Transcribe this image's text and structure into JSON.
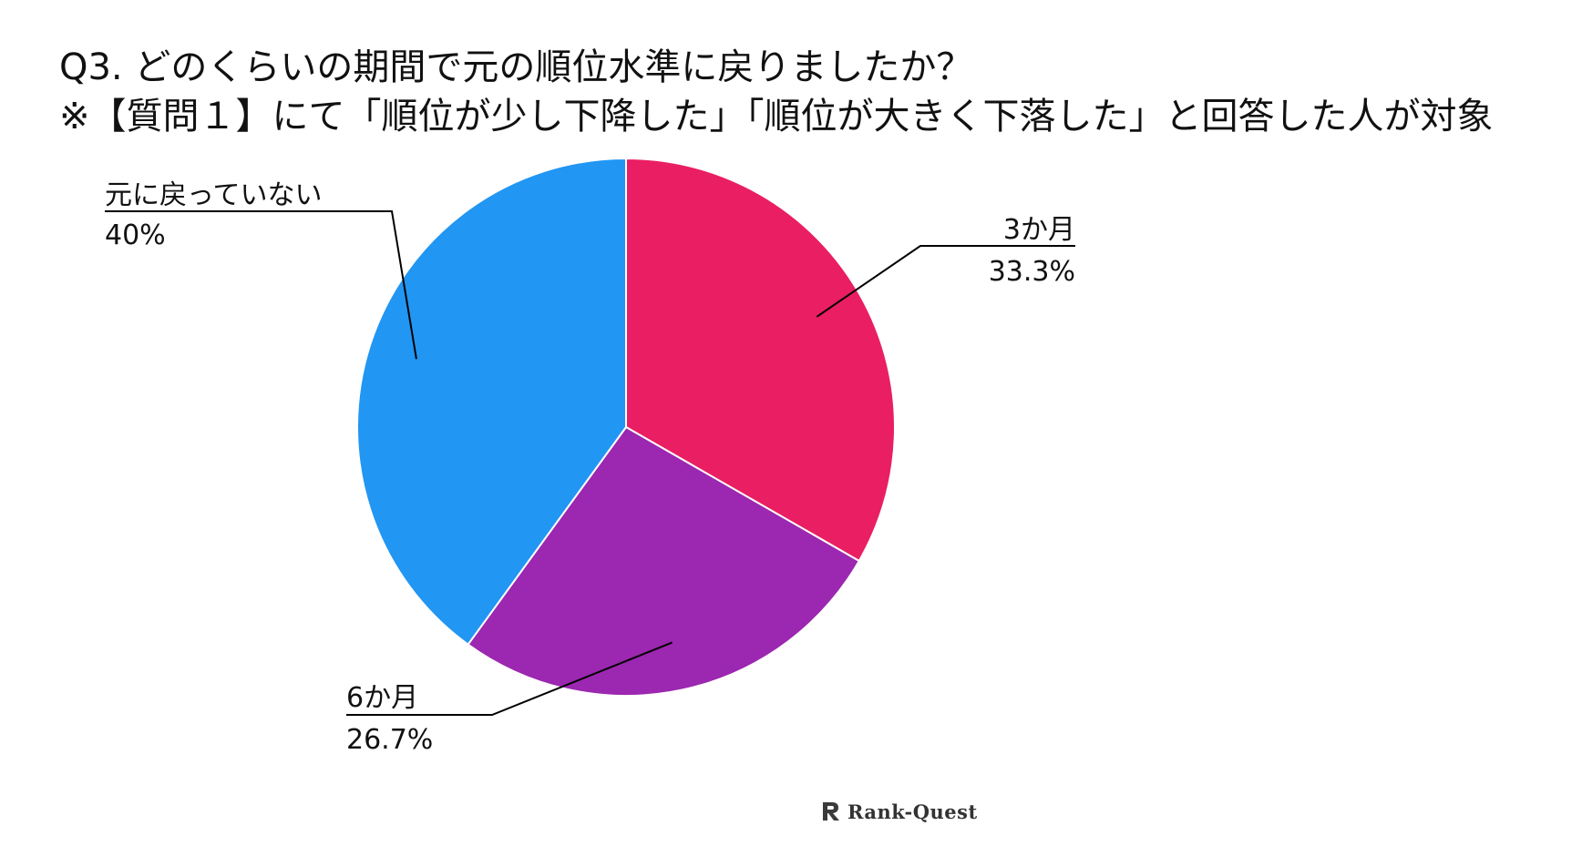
{
  "title": {
    "line1": "Q3. どのくらいの期間で元の順位水準に戻りましたか？",
    "line2": "※【質問１】にて「順位が少し下降した」「順位が大きく下落した」と回答した人が対象"
  },
  "chart_data": {
    "type": "pie",
    "title": "Q3. どのくらいの期間で元の順位水準に戻りましたか？",
    "slices": [
      {
        "label": "3か月",
        "percent_label": "33.3%",
        "value": 33.3,
        "color": "#E91E63"
      },
      {
        "label": "6か月",
        "percent_label": "26.7%",
        "value": 26.7,
        "color": "#9C27B0"
      },
      {
        "label": "元に戻っていない",
        "percent_label": "40%",
        "value": 40,
        "color": "#2196F3"
      }
    ],
    "start_angle": "12 o'clock",
    "direction": "clockwise",
    "slice_border_color": "#ffffff",
    "legend": "none",
    "labels": "outside with leader lines"
  },
  "watermark": {
    "text": "Rank-Quest",
    "icon": "rank-quest-logo-icon"
  }
}
